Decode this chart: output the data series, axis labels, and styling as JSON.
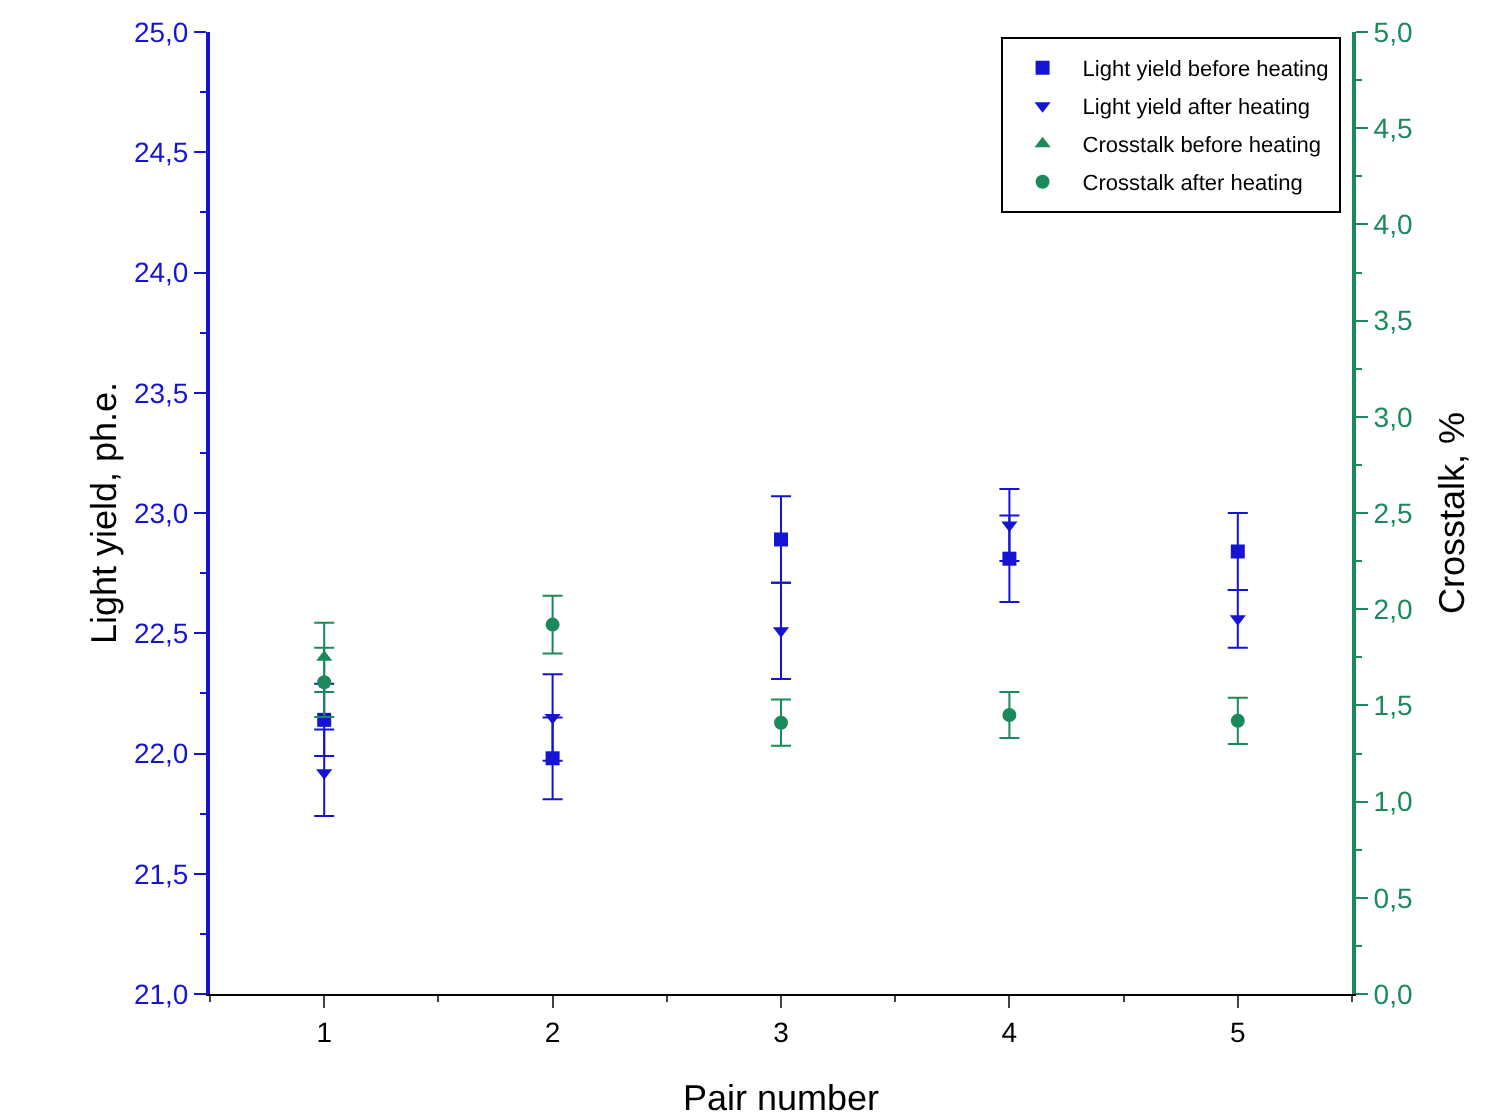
{
  "chart_data": {
    "type": "scatter",
    "xlabel": "Pair number",
    "ylabel": "Light yield, ph.e.",
    "y2label": "Crosstalk, %",
    "x": [
      1,
      2,
      3,
      4,
      5
    ],
    "xlim": [
      0.5,
      5.5
    ],
    "xticks": [
      1,
      2,
      3,
      4,
      5
    ],
    "ylim": [
      21,
      25
    ],
    "yticks": [
      {
        "value": 21,
        "label": "21,0"
      },
      {
        "value": 21.5,
        "label": "21,5"
      },
      {
        "value": 22,
        "label": "22,0"
      },
      {
        "value": 22.5,
        "label": "22,5"
      },
      {
        "value": 23,
        "label": "23,0"
      },
      {
        "value": 23.5,
        "label": "23,5"
      },
      {
        "value": 24,
        "label": "24,0"
      },
      {
        "value": 24.5,
        "label": "24,5"
      },
      {
        "value": 25,
        "label": "25,0"
      }
    ],
    "y2lim": [
      0,
      5
    ],
    "y2ticks": [
      {
        "value": 0,
        "label": "0,0"
      },
      {
        "value": 0.5,
        "label": "0,5"
      },
      {
        "value": 1,
        "label": "1,0"
      },
      {
        "value": 1.5,
        "label": "1,5"
      },
      {
        "value": 2,
        "label": "2,0"
      },
      {
        "value": 2.5,
        "label": "2,5"
      },
      {
        "value": 3,
        "label": "3,0"
      },
      {
        "value": 3.5,
        "label": "3,5"
      },
      {
        "value": 4,
        "label": "4,0"
      },
      {
        "value": 4.5,
        "label": "4,5"
      },
      {
        "value": 5,
        "label": "5,0"
      }
    ],
    "legend": "top right",
    "grid": false,
    "series": [
      {
        "name": "Light yield before heating",
        "color": "#1414d2",
        "marker": "square",
        "values": [
          22.14,
          21.98,
          22.89,
          22.81,
          22.84
        ],
        "errors": [
          0.15,
          0.17,
          0.18,
          0.18,
          0.16
        ]
      },
      {
        "name": "Light yield after heating",
        "color": "#1414d2",
        "marker": "triangle",
        "values": [
          21.92,
          22.15,
          22.51,
          22.95,
          22.56
        ],
        "errors": [
          0.18,
          0.18,
          0.2,
          0.15,
          0.12
        ]
      },
      {
        "name": "Crosstalk before heating",
        "color": "#1a8a5a",
        "marker": "triangle-up",
        "axis": "y2",
        "values": [
          1.75,
          null,
          null,
          null,
          null
        ],
        "errors": [
          0.18,
          null,
          null,
          null,
          null
        ]
      },
      {
        "name": "Crosstalk after heating",
        "color": "#1a8a5a",
        "marker": "circle",
        "axis": "y2",
        "values": [
          1.62,
          1.92,
          1.41,
          1.45,
          1.42
        ],
        "errors": [
          0.18,
          0.15,
          0.12,
          0.12,
          0.12
        ]
      }
    ]
  }
}
